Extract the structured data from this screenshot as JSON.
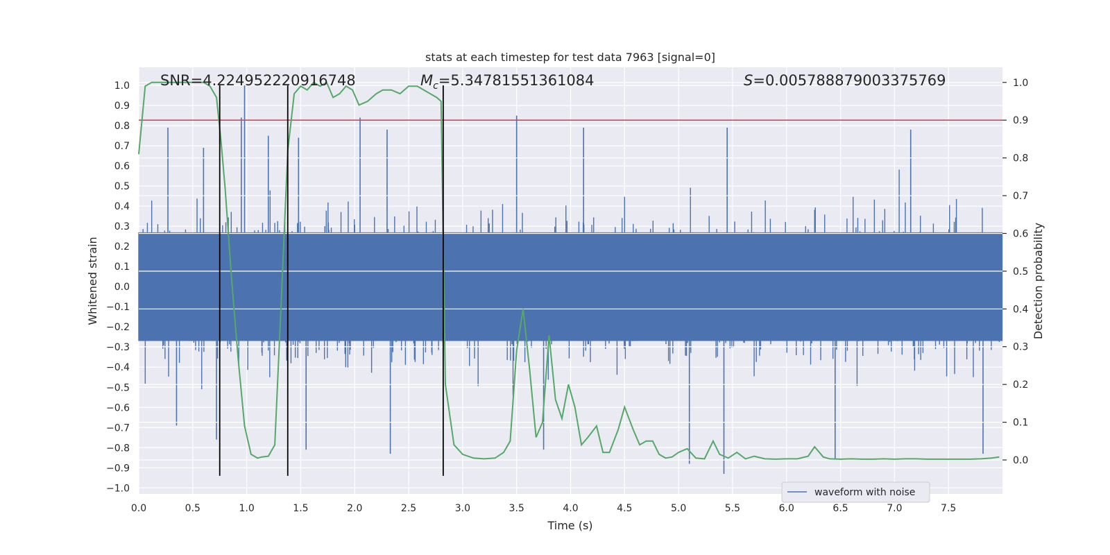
{
  "chart_data": {
    "type": "line",
    "title": "stats at each timestep for test data 7963 [signal=0]",
    "xlabel": "Time (s)",
    "ylabel_left": "Whitened strain",
    "ylabel_right": "Detection probability",
    "xlim": [
      0.0,
      8.0
    ],
    "ylim_left": [
      -1.03,
      1.09
    ],
    "ylim_right": [
      -0.09,
      1.04
    ],
    "xticks": [
      "0.0",
      "0.5",
      "1.0",
      "1.5",
      "2.0",
      "2.5",
      "3.0",
      "3.5",
      "4.0",
      "4.5",
      "5.0",
      "5.5",
      "6.0",
      "6.5",
      "7.0",
      "7.5"
    ],
    "xtick_values": [
      0.0,
      0.5,
      1.0,
      1.5,
      2.0,
      2.5,
      3.0,
      3.5,
      4.0,
      4.5,
      5.0,
      5.5,
      6.0,
      6.5,
      7.0,
      7.5
    ],
    "yticks_left": [
      "1.0",
      "0.9",
      "0.8",
      "0.7",
      "0.6",
      "0.5",
      "0.4",
      "0.3",
      "0.2",
      "0.1",
      "0.0",
      "−0.1",
      "−0.2",
      "−0.3",
      "−0.4",
      "−0.5",
      "−0.6",
      "−0.7",
      "−0.8",
      "−0.9",
      "−1.0"
    ],
    "ytick_values_left": [
      1.0,
      0.9,
      0.8,
      0.7,
      0.6,
      0.5,
      0.4,
      0.3,
      0.2,
      0.1,
      0.0,
      -0.1,
      -0.2,
      -0.3,
      -0.4,
      -0.5,
      -0.6,
      -0.7,
      -0.8,
      -0.9,
      -1.0
    ],
    "yticks_right": [
      "1.0",
      "0.9",
      "0.8",
      "0.7",
      "0.6",
      "0.5",
      "0.4",
      "0.3",
      "0.2",
      "0.1",
      "0.0"
    ],
    "ytick_values_right": [
      1.0,
      0.9,
      0.8,
      0.7,
      0.6,
      0.5,
      0.4,
      0.3,
      0.2,
      0.1,
      0.0
    ],
    "grid": true,
    "annotations": {
      "snr": "SNR=4.224952220916748",
      "mc_symbol": "M",
      "mc_sub": "c",
      "mc_value": "=5.34781551361084",
      "s_symbol": "S",
      "s_value": "=0.005788879003375769"
    },
    "legend": {
      "label": "waveform with noise",
      "placement": "lower-right"
    },
    "threshold": {
      "value": 0.9,
      "axis": "right",
      "color": "#c44e52"
    },
    "markers": [
      0.75,
      1.38,
      2.82
    ],
    "markers_y_range_left": [
      -0.94,
      1.0
    ],
    "waveform": {
      "name": "waveform with noise",
      "color": "#4c72b0",
      "duration": 8.0,
      "samples": 2400,
      "core_amplitude": 0.27,
      "peaks": [
        {
          "t": 0.27,
          "y": 0.79
        },
        {
          "t": 0.6,
          "y": 0.69
        },
        {
          "t": 0.95,
          "y": 0.84
        },
        {
          "t": 0.98,
          "y": 1.0
        },
        {
          "t": 1.2,
          "y": 0.75
        },
        {
          "t": 1.48,
          "y": 0.74
        },
        {
          "t": 2.05,
          "y": 0.84
        },
        {
          "t": 2.3,
          "y": 0.78
        },
        {
          "t": 3.5,
          "y": 0.85
        },
        {
          "t": 4.12,
          "y": 0.79
        },
        {
          "t": 5.45,
          "y": 0.79
        },
        {
          "t": 7.15,
          "y": 0.78
        },
        {
          "t": 0.35,
          "y": -0.69
        },
        {
          "t": 0.72,
          "y": -0.76
        },
        {
          "t": 1.55,
          "y": -0.81
        },
        {
          "t": 2.33,
          "y": -0.83
        },
        {
          "t": 3.75,
          "y": -0.81
        },
        {
          "t": 5.1,
          "y": -0.88
        },
        {
          "t": 5.42,
          "y": -0.93
        },
        {
          "t": 6.45,
          "y": -0.86
        },
        {
          "t": 7.82,
          "y": -0.83
        }
      ]
    },
    "detection_probability": {
      "name": "detection probability",
      "color": "#55a868",
      "t": [
        0.0,
        0.06,
        0.12,
        0.2,
        0.3,
        0.4,
        0.5,
        0.6,
        0.66,
        0.72,
        0.76,
        0.8,
        0.86,
        0.92,
        0.98,
        1.04,
        1.1,
        1.14,
        1.2,
        1.26,
        1.32,
        1.38,
        1.44,
        1.5,
        1.56,
        1.62,
        1.68,
        1.74,
        1.8,
        1.86,
        1.92,
        1.98,
        2.04,
        2.12,
        2.2,
        2.26,
        2.34,
        2.42,
        2.5,
        2.58,
        2.64,
        2.7,
        2.76,
        2.8,
        2.84,
        2.92,
        3.0,
        3.1,
        3.2,
        3.3,
        3.38,
        3.44,
        3.5,
        3.56,
        3.62,
        3.68,
        3.74,
        3.8,
        3.86,
        3.92,
        3.98,
        4.04,
        4.1,
        4.16,
        4.24,
        4.3,
        4.36,
        4.44,
        4.5,
        4.58,
        4.64,
        4.7,
        4.76,
        4.82,
        4.88,
        4.94,
        5.0,
        5.08,
        5.16,
        5.24,
        5.32,
        5.38,
        5.46,
        5.54,
        5.62,
        5.7,
        5.8,
        5.9,
        6.0,
        6.1,
        6.2,
        6.26,
        6.34,
        6.4,
        6.5,
        6.6,
        6.7,
        6.8,
        6.9,
        7.0,
        7.1,
        7.2,
        7.3,
        7.4,
        7.5,
        7.6,
        7.7,
        7.8,
        7.9,
        7.97
      ],
      "p": [
        0.81,
        0.99,
        1.0,
        1.0,
        1.0,
        1.0,
        1.0,
        1.0,
        0.99,
        0.96,
        0.85,
        0.72,
        0.48,
        0.27,
        0.09,
        0.015,
        0.005,
        0.008,
        0.01,
        0.04,
        0.42,
        0.82,
        0.97,
        0.99,
        0.98,
        1.0,
        0.99,
        1.0,
        0.96,
        0.97,
        0.99,
        0.98,
        0.94,
        0.95,
        0.97,
        0.98,
        0.98,
        0.97,
        0.99,
        0.99,
        0.98,
        0.97,
        0.96,
        0.95,
        0.2,
        0.04,
        0.015,
        0.005,
        0.003,
        0.005,
        0.02,
        0.05,
        0.29,
        0.4,
        0.24,
        0.06,
        0.1,
        0.33,
        0.16,
        0.11,
        0.2,
        0.14,
        0.04,
        0.06,
        0.09,
        0.02,
        0.02,
        0.08,
        0.14,
        0.08,
        0.04,
        0.05,
        0.05,
        0.015,
        0.005,
        0.008,
        0.02,
        0.03,
        0.005,
        0.003,
        0.05,
        0.015,
        0.005,
        0.02,
        0.003,
        0.01,
        0.003,
        0.002,
        0.003,
        0.003,
        0.01,
        0.035,
        0.008,
        0.003,
        0.002,
        0.003,
        0.002,
        0.002,
        0.003,
        0.002,
        0.003,
        0.003,
        0.002,
        0.002,
        0.002,
        0.002,
        0.002,
        0.003,
        0.005,
        0.008
      ]
    }
  }
}
